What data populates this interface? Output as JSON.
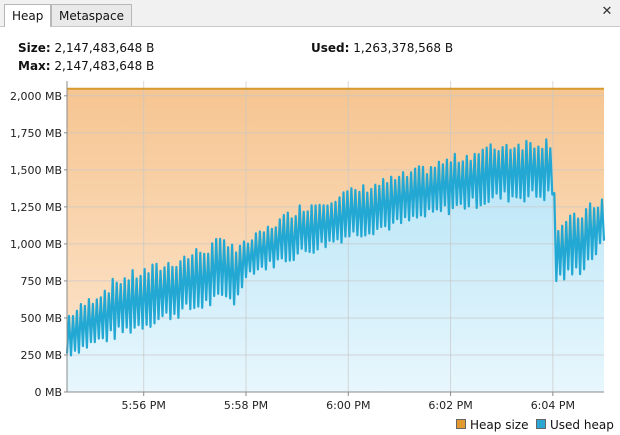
{
  "tabs": [
    {
      "label": "Heap",
      "active": true
    },
    {
      "label": "Metaspace",
      "active": false
    }
  ],
  "close_icon": "close-icon",
  "stats": {
    "size_label": "Size:",
    "size_value": "2,147,483,648 B",
    "max_label": "Max:",
    "max_value": "2,147,483,648 B",
    "used_label": "Used:",
    "used_value": "1,263,378,568 B"
  },
  "colors": {
    "heap_size_line": "#d79a2c",
    "heap_size_fill_top": "#f6c591",
    "heap_size_fill_bottom": "#fde8d2",
    "used_heap_line": "#23a8d4",
    "used_heap_fill_top": "#b4e3f6",
    "used_heap_fill_bottom": "#e8f7fd"
  },
  "chart_data": {
    "type": "area",
    "ylim": [
      0,
      2100
    ],
    "y_ticks": [
      0,
      250,
      500,
      750,
      1000,
      1250,
      1500,
      1750,
      2000
    ],
    "y_tick_labels": [
      "0 MB",
      "250 MB",
      "500 MB",
      "750 MB",
      "1,000 MB",
      "1,250 MB",
      "1,500 MB",
      "1,750 MB",
      "2,000 MB"
    ],
    "x_start_min": 354.5,
    "x_end_min": 365.0,
    "x_ticks": [
      356,
      358,
      360,
      362,
      364
    ],
    "x_tick_labels": [
      "5:56 PM",
      "5:58 PM",
      "6:00 PM",
      "6:02 PM",
      "6:04 PM"
    ],
    "grid": true,
    "legend_position": "bottom-right",
    "series": [
      {
        "name": "Heap size",
        "values": [
          2048,
          2048
        ]
      },
      {
        "name": "Used heap",
        "envelope": [
          [
            354.5,
            260,
            500
          ],
          [
            355.5,
            400,
            750
          ],
          [
            356.5,
            520,
            860
          ],
          [
            357.7,
            650,
            1030
          ],
          [
            357.8,
            600,
            950
          ],
          [
            358.0,
            800,
            1000
          ],
          [
            359.0,
            930,
            1230
          ],
          [
            360.0,
            1060,
            1340
          ],
          [
            361.0,
            1140,
            1440
          ],
          [
            362.0,
            1240,
            1560
          ],
          [
            363.0,
            1320,
            1660
          ],
          [
            364.0,
            1330,
            1690
          ],
          [
            364.05,
            760,
            1100
          ],
          [
            364.5,
            820,
            1180
          ],
          [
            365.0,
            1000,
            1300
          ]
        ]
      }
    ]
  },
  "legend": [
    {
      "label": "Heap size"
    },
    {
      "label": "Used heap"
    }
  ]
}
